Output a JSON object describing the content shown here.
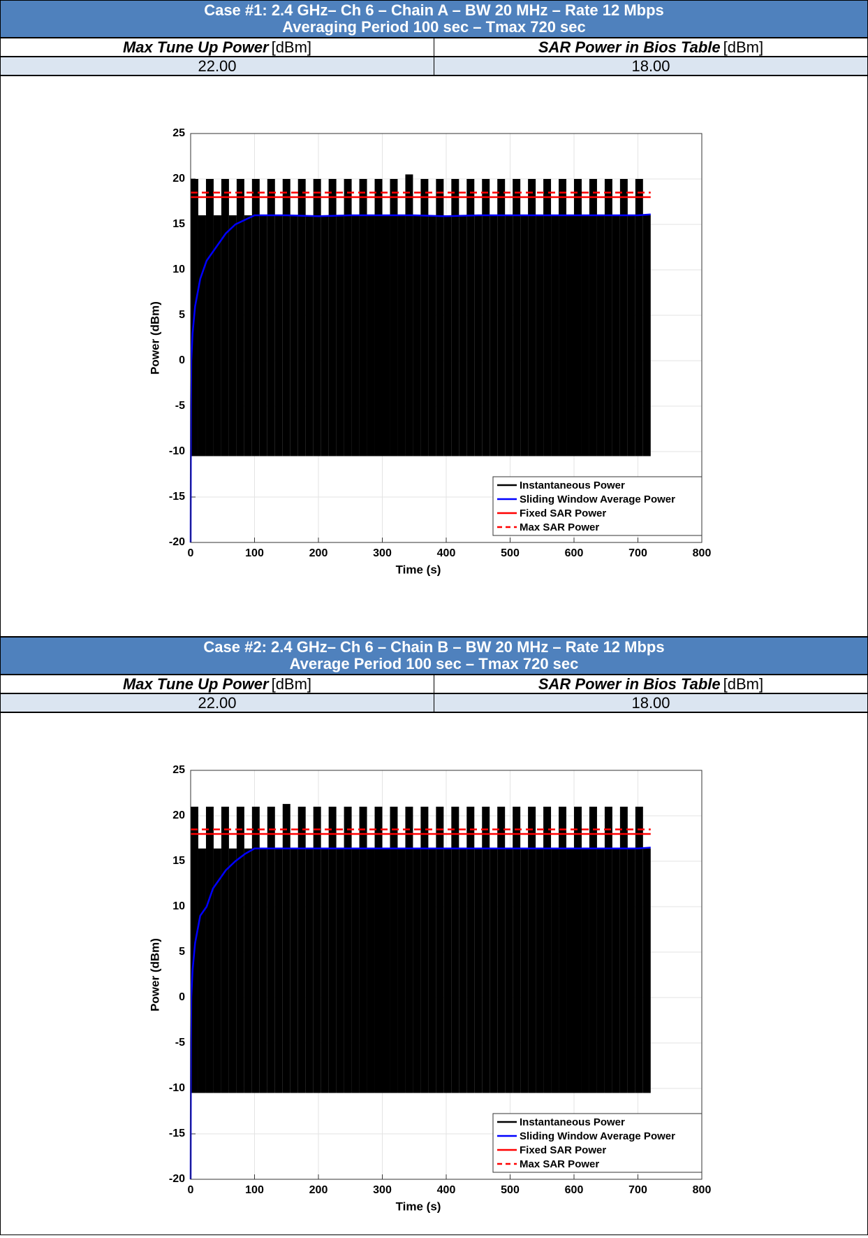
{
  "cases": [
    {
      "title": "Case #1: 2.4 GHz– Ch 6 – Chain A – BW 20 MHz – Rate 12 Mbps",
      "subtitle": "Averaging Period 100 sec – Tmax 720 sec",
      "columns": [
        {
          "label": "Max Tune Up Power",
          "unit": "[dBm]"
        },
        {
          "label": "SAR Power in Bios Table",
          "unit": "[dBm]"
        }
      ],
      "values": [
        "22.00",
        "18.00"
      ]
    },
    {
      "title": "Case #2: 2.4 GHz– Ch 6 – Chain B – BW 20 MHz – Rate 12 Mbps",
      "subtitle": "Average Period 100 sec – Tmax 720 sec",
      "columns": [
        {
          "label": "Max Tune Up Power",
          "unit": "[dBm]"
        },
        {
          "label": "SAR Power in Bios Table",
          "unit": "[dBm]"
        }
      ],
      "values": [
        "22.00",
        "18.00"
      ]
    }
  ],
  "chart_data": [
    {
      "type": "line",
      "xlabel": "Time (s)",
      "ylabel": "Power (dBm)",
      "xlim": [
        0,
        800
      ],
      "xticks": [
        0,
        100,
        200,
        300,
        400,
        500,
        600,
        700,
        800
      ],
      "ylim": [
        -20,
        25
      ],
      "yticks": [
        -20,
        -15,
        -10,
        -5,
        0,
        5,
        10,
        15,
        20,
        25
      ],
      "grid": true,
      "legend": "lower right",
      "series": [
        {
          "name": "Instantaneous Power",
          "color": "#000000",
          "style": "band",
          "bins": [
            0,
            12,
            24,
            36,
            48,
            60,
            72,
            84,
            96,
            108,
            120,
            132,
            144,
            156,
            168,
            180,
            192,
            204,
            216,
            228,
            240,
            252,
            264,
            276,
            288,
            300,
            312,
            324,
            336,
            348,
            360,
            372,
            384,
            396,
            408,
            420,
            432,
            444,
            456,
            468,
            480,
            492,
            504,
            516,
            528,
            540,
            552,
            564,
            576,
            588,
            600,
            612,
            624,
            636,
            648,
            660,
            672,
            684,
            696,
            708,
            720
          ],
          "high": [
            20,
            16,
            20,
            16,
            20,
            16,
            20,
            16,
            20,
            16,
            20,
            16,
            20,
            16,
            20,
            16,
            20,
            16,
            20,
            16,
            20,
            16,
            20,
            16,
            20,
            16,
            20,
            16,
            20.5,
            16,
            20,
            16,
            20,
            16,
            20,
            16,
            20,
            16,
            20,
            16,
            20,
            16,
            20,
            16,
            20,
            16,
            20,
            16,
            20,
            16,
            20,
            16,
            20,
            16,
            20,
            16,
            20,
            16,
            20,
            16
          ],
          "low": [
            -10.5,
            -10.5,
            -10.5,
            -10.5,
            -10.5,
            -10.5,
            -10.5,
            -10.5,
            -10.5,
            -10.5,
            -10.5,
            -10.5,
            -10.5,
            -10.5,
            -10.5,
            -10.5,
            -10.5,
            -10.5,
            -10.5,
            -10.5,
            -10.5,
            -10.5,
            -10.5,
            -10.5,
            -10.5,
            -10.5,
            -10.5,
            -10.5,
            -10.5,
            -10.5,
            -10.5,
            -10.5,
            -10.5,
            -10.5,
            -10.5,
            -10.5,
            -10.5,
            -10.5,
            -10.5,
            -10.5,
            -10.5,
            -10.5,
            -10.5,
            -10.5,
            -10.5,
            -10.5,
            -10.5,
            -10.5,
            -10.5,
            -10.5,
            -10.5,
            -10.5,
            -10.5,
            -10.5,
            -10.5,
            -10.5,
            -10.5,
            -10.5,
            -10.5,
            -10.5
          ]
        },
        {
          "name": "Sliding Window Average Power",
          "color": "#0000ff",
          "x": [
            0,
            0.5,
            1,
            3,
            7,
            15,
            25,
            35,
            45,
            55,
            70,
            85,
            100,
            150,
            200,
            250,
            300,
            350,
            400,
            450,
            500,
            550,
            600,
            650,
            700,
            720
          ],
          "values": [
            -20,
            -5,
            0,
            3,
            6,
            9,
            11,
            12,
            13,
            14,
            15,
            15.5,
            16,
            16,
            15.9,
            16,
            16,
            16,
            15.9,
            16,
            16,
            16,
            16,
            16,
            16,
            16.1
          ]
        },
        {
          "name": "Fixed SAR Power",
          "color": "#ff0000",
          "x": [
            0,
            720
          ],
          "values": [
            18,
            18
          ]
        },
        {
          "name": "Max SAR Power",
          "color": "#ff0000",
          "dash": true,
          "x": [
            0,
            720
          ],
          "values": [
            18.5,
            18.5
          ]
        }
      ]
    },
    {
      "type": "line",
      "xlabel": "Time (s)",
      "ylabel": "Power (dBm)",
      "xlim": [
        0,
        800
      ],
      "xticks": [
        0,
        100,
        200,
        300,
        400,
        500,
        600,
        700,
        800
      ],
      "ylim": [
        -20,
        25
      ],
      "yticks": [
        -20,
        -15,
        -10,
        -5,
        0,
        5,
        10,
        15,
        20,
        25
      ],
      "grid": true,
      "legend": "lower right",
      "series": [
        {
          "name": "Instantaneous Power",
          "color": "#000000",
          "style": "band",
          "bins": [
            0,
            12,
            24,
            36,
            48,
            60,
            72,
            84,
            96,
            108,
            120,
            132,
            144,
            156,
            168,
            180,
            192,
            204,
            216,
            228,
            240,
            252,
            264,
            276,
            288,
            300,
            312,
            324,
            336,
            348,
            360,
            372,
            384,
            396,
            408,
            420,
            432,
            444,
            456,
            468,
            480,
            492,
            504,
            516,
            528,
            540,
            552,
            564,
            576,
            588,
            600,
            612,
            624,
            636,
            648,
            660,
            672,
            684,
            696,
            708,
            720
          ],
          "high": [
            21,
            16.4,
            21,
            16.4,
            21,
            16.4,
            21,
            16.4,
            21,
            16.4,
            21,
            16.4,
            21.3,
            16.4,
            21,
            16.4,
            21,
            16.4,
            21,
            16.4,
            21,
            16.4,
            21,
            16.4,
            21,
            16.4,
            21,
            16.4,
            21,
            16.4,
            21,
            16.4,
            21,
            16.4,
            21,
            16.4,
            21,
            16.4,
            21,
            16.4,
            21,
            16.4,
            21,
            16.4,
            21,
            16.4,
            21,
            16.4,
            21,
            16.4,
            21,
            16.4,
            21,
            16.4,
            21,
            16.4,
            21,
            16.4,
            21,
            16.4
          ],
          "low": [
            -10.5,
            -10.5,
            -10.5,
            -10.5,
            -10.5,
            -10.5,
            -10.5,
            -10.5,
            -10.5,
            -10.5,
            -10.5,
            -10.5,
            -10.5,
            -10.5,
            -10.5,
            -10.5,
            -10.5,
            -10.5,
            -10.5,
            -10.5,
            -10.5,
            -10.5,
            -10.5,
            -10.5,
            -10.5,
            -10.5,
            -10.5,
            -10.5,
            -10.5,
            -10.5,
            -10.5,
            -10.5,
            -10.5,
            -10.5,
            -10.5,
            -10.5,
            -10.5,
            -10.5,
            -10.5,
            -10.5,
            -10.5,
            -10.5,
            -10.5,
            -10.5,
            -10.5,
            -10.5,
            -10.5,
            -10.5,
            -10.5,
            -10.5,
            -10.5,
            -10.5,
            -10.5,
            -10.5,
            -10.5,
            -10.5,
            -10.5,
            -10.5,
            -10.5,
            -10.5
          ]
        },
        {
          "name": "Sliding Window Average Power",
          "color": "#0000ff",
          "x": [
            0,
            0.5,
            1,
            3,
            7,
            15,
            20,
            25,
            35,
            45,
            55,
            70,
            85,
            100,
            150,
            200,
            250,
            300,
            350,
            400,
            450,
            500,
            550,
            600,
            650,
            700,
            720
          ],
          "values": [
            -20,
            -5,
            0,
            3,
            6,
            9,
            9.5,
            10,
            12,
            13,
            14,
            15,
            15.8,
            16.4,
            16.4,
            16.4,
            16.4,
            16.4,
            16.4,
            16.4,
            16.4,
            16.4,
            16.4,
            16.4,
            16.4,
            16.4,
            16.5
          ]
        },
        {
          "name": "Fixed SAR Power",
          "color": "#ff0000",
          "x": [
            0,
            720
          ],
          "values": [
            18,
            18
          ]
        },
        {
          "name": "Max SAR Power",
          "color": "#ff0000",
          "dash": true,
          "x": [
            0,
            720
          ],
          "values": [
            18.5,
            18.5
          ]
        }
      ]
    }
  ]
}
